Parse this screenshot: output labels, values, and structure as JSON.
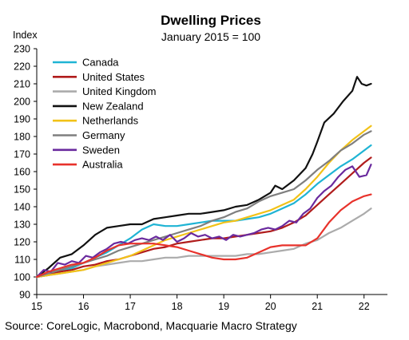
{
  "chart_data": {
    "type": "line",
    "title": "Dwelling Prices",
    "subtitle": "January 2015 = 100",
    "ylabel": "Index",
    "xlabel": "",
    "ylim": [
      90,
      230
    ],
    "xlim": [
      15,
      22.5
    ],
    "yticks": [
      90,
      100,
      110,
      120,
      130,
      140,
      150,
      160,
      170,
      180,
      190,
      200,
      210,
      220,
      230
    ],
    "xticks": [
      15,
      16,
      17,
      18,
      19,
      20,
      21,
      22
    ],
    "grid": false,
    "legend_position": "top-left",
    "source": "Source: CoreLogic, Macrobond, Macquarie Macro Strategy",
    "series": [
      {
        "name": "Canada",
        "color": "#1fb4d4",
        "x": [
          15,
          15.25,
          15.5,
          15.75,
          16,
          16.25,
          16.5,
          16.75,
          17,
          17.25,
          17.5,
          17.75,
          18,
          18.25,
          18.5,
          18.75,
          19,
          19.25,
          19.5,
          19.75,
          20,
          20.25,
          20.5,
          20.75,
          21,
          21.25,
          21.5,
          21.75,
          22,
          22.15
        ],
        "values": [
          100,
          101,
          103,
          105,
          108,
          111,
          114,
          118,
          122,
          127,
          130,
          129,
          129,
          130,
          131,
          132,
          132,
          132,
          133,
          134,
          136,
          139,
          142,
          147,
          153,
          158,
          163,
          167,
          172,
          175
        ]
      },
      {
        "name": "United States",
        "color": "#b01c1c",
        "x": [
          15,
          15.25,
          15.5,
          15.75,
          16,
          16.25,
          16.5,
          16.75,
          17,
          17.25,
          17.5,
          17.75,
          18,
          18.25,
          18.5,
          18.75,
          19,
          19.25,
          19.5,
          19.75,
          20,
          20.25,
          20.5,
          20.75,
          21,
          21.25,
          21.5,
          21.75,
          22,
          22.15
        ],
        "values": [
          100,
          101,
          103,
          104,
          106,
          107,
          109,
          110,
          112,
          114,
          116,
          117,
          119,
          120,
          121,
          122,
          122,
          123,
          124,
          125,
          126,
          128,
          131,
          135,
          141,
          147,
          153,
          159,
          165,
          168
        ]
      },
      {
        "name": "United Kingdom",
        "color": "#ababab",
        "x": [
          15,
          15.25,
          15.5,
          15.75,
          16,
          16.25,
          16.5,
          16.75,
          17,
          17.25,
          17.5,
          17.75,
          18,
          18.25,
          18.5,
          18.75,
          19,
          19.25,
          19.5,
          19.75,
          20,
          20.25,
          20.5,
          20.75,
          21,
          21.25,
          21.5,
          21.75,
          22,
          22.15
        ],
        "values": [
          100,
          101,
          102,
          103,
          104,
          106,
          107,
          108,
          109,
          109,
          110,
          111,
          111,
          112,
          112,
          112,
          112,
          112,
          113,
          113,
          114,
          115,
          116,
          119,
          121,
          125,
          128,
          132,
          136,
          139
        ]
      },
      {
        "name": "New Zealand",
        "color": "#111111",
        "x": [
          15,
          15.25,
          15.5,
          15.75,
          16,
          16.25,
          16.5,
          16.75,
          17,
          17.25,
          17.5,
          17.75,
          18,
          18.25,
          18.5,
          18.75,
          19,
          19.25,
          19.5,
          19.75,
          20,
          20.1,
          20.25,
          20.5,
          20.75,
          20.9,
          21,
          21.15,
          21.35,
          21.55,
          21.75,
          21.85,
          21.95,
          22.05,
          22.15
        ],
        "values": [
          100,
          105,
          111,
          113,
          118,
          124,
          128,
          129,
          130,
          130,
          133,
          134,
          135,
          136,
          136,
          137,
          138,
          140,
          141,
          144,
          148,
          152,
          150,
          155,
          162,
          170,
          177,
          188,
          193,
          200,
          206,
          214,
          210,
          209,
          210
        ]
      },
      {
        "name": "Netherlands",
        "color": "#f2c218",
        "x": [
          15,
          15.25,
          15.5,
          15.75,
          16,
          16.25,
          16.5,
          16.75,
          17,
          17.25,
          17.5,
          17.75,
          18,
          18.25,
          18.5,
          18.75,
          19,
          19.25,
          19.5,
          19.75,
          20,
          20.25,
          20.5,
          20.75,
          21,
          21.25,
          21.5,
          21.75,
          22,
          22.15
        ],
        "values": [
          100,
          101,
          102,
          103,
          104,
          106,
          108,
          110,
          112,
          115,
          118,
          121,
          123,
          125,
          127,
          129,
          131,
          132,
          134,
          136,
          138,
          141,
          144,
          150,
          157,
          165,
          172,
          178,
          183,
          186
        ]
      },
      {
        "name": "Germany",
        "color": "#7f7f7f",
        "x": [
          15,
          15.25,
          15.5,
          15.75,
          16,
          16.25,
          16.5,
          16.75,
          17,
          17.25,
          17.5,
          17.75,
          18,
          18.25,
          18.5,
          18.75,
          19,
          19.25,
          19.5,
          19.75,
          20,
          20.25,
          20.5,
          20.75,
          21,
          21.25,
          21.5,
          21.75,
          22,
          22.15
        ],
        "values": [
          100,
          102,
          104,
          106,
          108,
          110,
          112,
          115,
          117,
          119,
          121,
          123,
          125,
          127,
          129,
          132,
          134,
          137,
          139,
          143,
          146,
          148,
          150,
          155,
          161,
          166,
          172,
          176,
          181,
          183
        ]
      },
      {
        "name": "Sweden",
        "color": "#6a2a9e",
        "x": [
          15,
          15.15,
          15.3,
          15.45,
          15.6,
          15.75,
          15.9,
          16.05,
          16.2,
          16.35,
          16.5,
          16.65,
          16.8,
          16.95,
          17.1,
          17.25,
          17.4,
          17.55,
          17.7,
          17.85,
          18,
          18.15,
          18.3,
          18.45,
          18.6,
          18.75,
          18.9,
          19.05,
          19.2,
          19.35,
          19.5,
          19.65,
          19.8,
          19.95,
          20.1,
          20.25,
          20.4,
          20.55,
          20.7,
          20.85,
          21,
          21.15,
          21.3,
          21.45,
          21.6,
          21.75,
          21.9,
          22.05,
          22.15
        ],
        "values": [
          100,
          104,
          103,
          108,
          107,
          109,
          108,
          112,
          111,
          114,
          116,
          119,
          120,
          119,
          121,
          122,
          121,
          123,
          121,
          124,
          120,
          122,
          125,
          123,
          124,
          122,
          123,
          121,
          124,
          123,
          124,
          125,
          127,
          128,
          127,
          129,
          132,
          131,
          136,
          139,
          145,
          149,
          152,
          157,
          161,
          163,
          157,
          158,
          164
        ]
      },
      {
        "name": "Australia",
        "color": "#e8322b",
        "x": [
          15,
          15.25,
          15.5,
          15.75,
          16,
          16.25,
          16.5,
          16.75,
          17,
          17.25,
          17.5,
          17.75,
          18,
          18.25,
          18.5,
          18.75,
          19,
          19.25,
          19.5,
          19.75,
          20,
          20.25,
          20.5,
          20.75,
          21,
          21.25,
          21.5,
          21.75,
          22,
          22.15
        ],
        "values": [
          100,
          103,
          105,
          107,
          108,
          111,
          115,
          118,
          119,
          119,
          119,
          118,
          117,
          115,
          113,
          111,
          110,
          110,
          111,
          114,
          117,
          118,
          118,
          118,
          122,
          131,
          138,
          143,
          146,
          147
        ]
      }
    ]
  }
}
